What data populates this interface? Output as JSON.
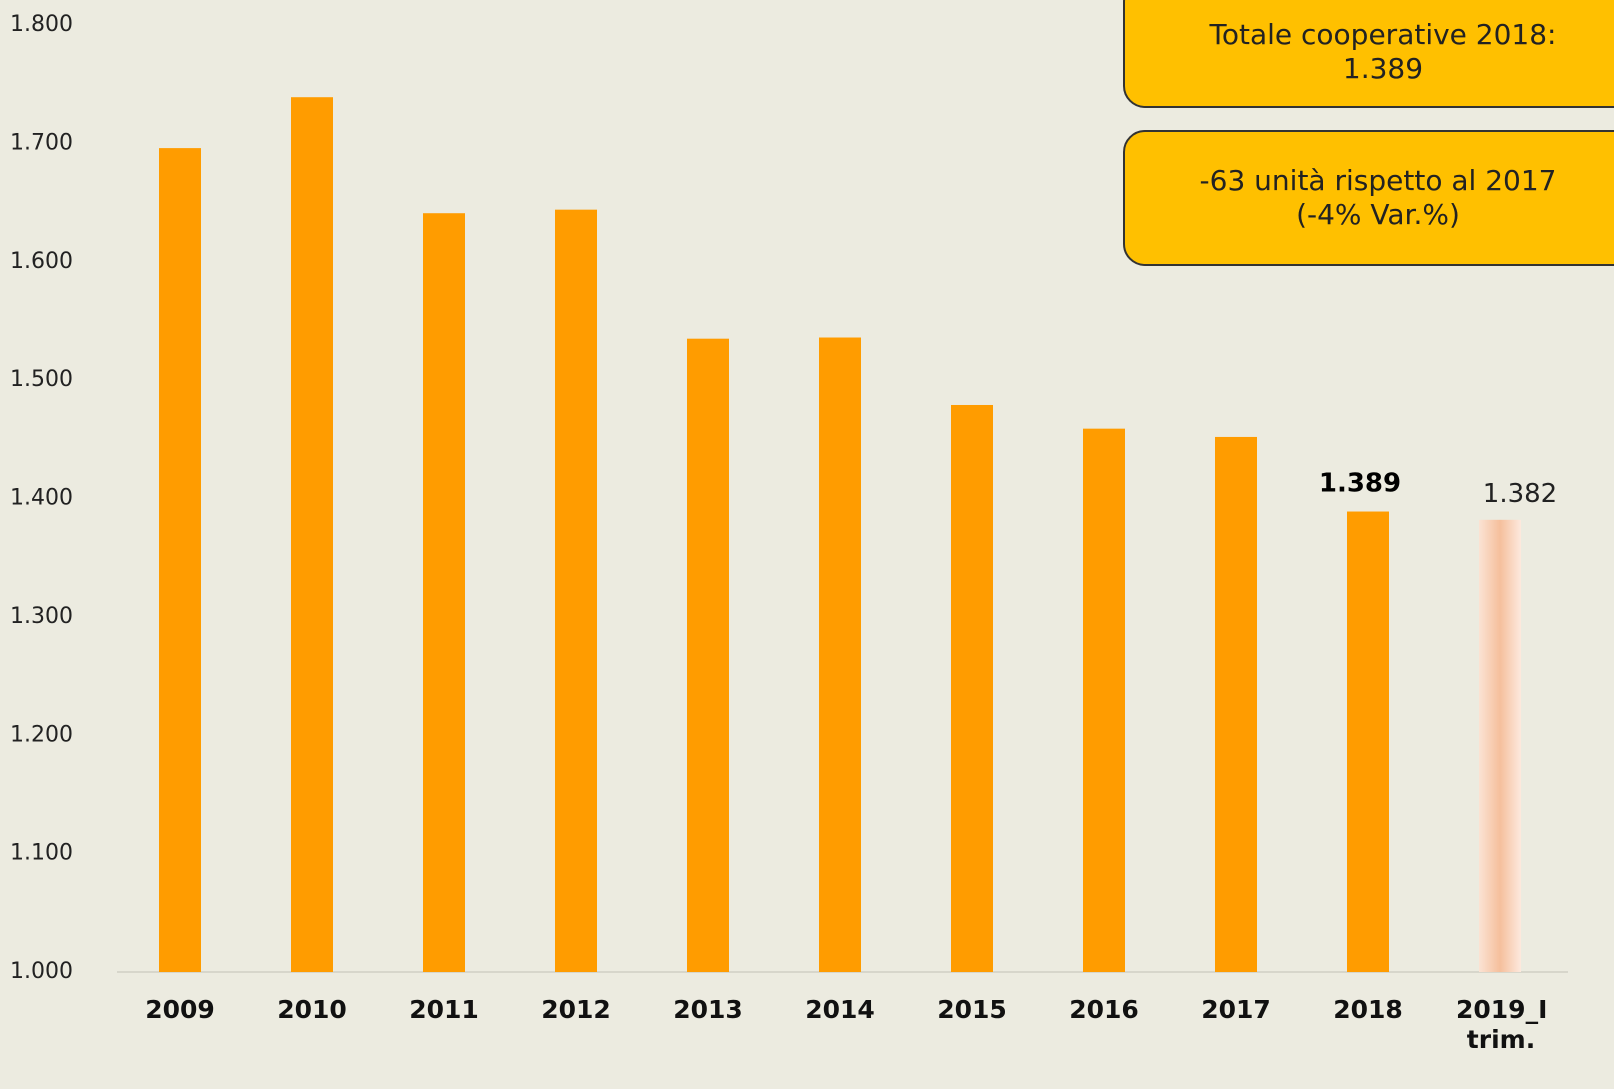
{
  "chart_data": {
    "type": "bar",
    "categories": [
      "2009",
      "2010",
      "2011",
      "2012",
      "2013",
      "2014",
      "2015",
      "2016",
      "2017",
      "2018",
      "2019_I trim."
    ],
    "values": [
      1696,
      1739,
      1641,
      1644,
      1535,
      1536,
      1479,
      1459,
      1452,
      1389,
      1382
    ],
    "value_labels": [
      null,
      null,
      null,
      null,
      null,
      null,
      null,
      null,
      null,
      "1.389",
      "1.382"
    ],
    "colors": [
      "#ff9c00",
      "#ff9c00",
      "#ff9c00",
      "#ff9c00",
      "#ff9c00",
      "#ff9c00",
      "#ff9c00",
      "#ff9c00",
      "#ff9c00",
      "#ff9c00",
      "#f7c3a1"
    ],
    "ylim": [
      1000,
      1800
    ],
    "yticks": [
      {
        "value": 1000,
        "label": "1.000"
      },
      {
        "value": 1100,
        "label": "1.100"
      },
      {
        "value": 1200,
        "label": "1.200"
      },
      {
        "value": 1300,
        "label": "1.300"
      },
      {
        "value": 1400,
        "label": "1.400"
      },
      {
        "value": 1500,
        "label": "1.500"
      },
      {
        "value": 1600,
        "label": "1.600"
      },
      {
        "value": 1700,
        "label": "1.700"
      },
      {
        "value": 1800,
        "label": "1.800"
      }
    ],
    "grid": false,
    "annotations": [
      {
        "lines": [
          "Totale cooperative 2018:",
          "1.389"
        ]
      },
      {
        "lines": [
          "-63 unità rispetto al 2017 (-4% Var.%)"
        ]
      }
    ]
  }
}
